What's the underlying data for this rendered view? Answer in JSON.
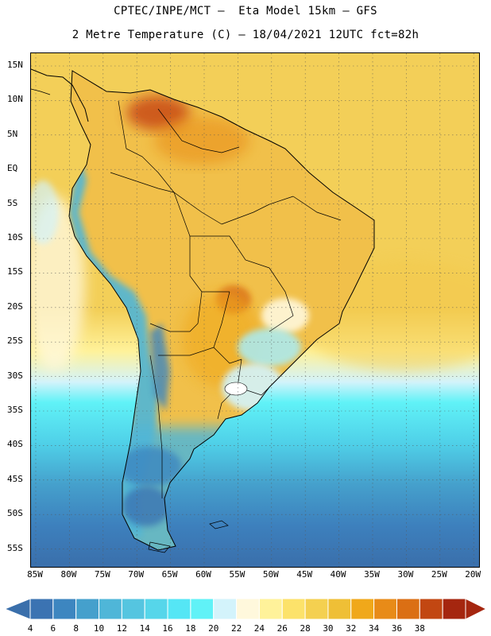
{
  "title": {
    "line1": "CPTEC/INPE/MCT –  Eta Model 15km – GFS",
    "line2": "2 Metre Temperature (C) – 18/04/2021 12UTC fct=82h"
  },
  "axes": {
    "lat_labels": [
      "15N",
      "10N",
      "5N",
      "EQ",
      "5S",
      "10S",
      "15S",
      "20S",
      "25S",
      "30S",
      "35S",
      "40S",
      "45S",
      "50S",
      "55S"
    ],
    "lon_labels": [
      "85W",
      "80W",
      "75W",
      "70W",
      "65W",
      "60W",
      "55W",
      "50W",
      "45W",
      "40W",
      "35W",
      "30W",
      "25W",
      "20W"
    ]
  },
  "legend": {
    "values": [
      4,
      6,
      8,
      10,
      12,
      14,
      16,
      18,
      20,
      22,
      24,
      26,
      28,
      30,
      32,
      34,
      36,
      38
    ],
    "colors": [
      "#3b73b2",
      "#3d86c0",
      "#45a0cc",
      "#4fb6d8",
      "#55c5e0",
      "#56d6ea",
      "#55e6f5",
      "#60f2f7",
      "#d3f3fb",
      "#fff8dc",
      "#fff29a",
      "#fce26a",
      "#f4d050",
      "#efbf36",
      "#f0a81a",
      "#e88b18",
      "#db6f14",
      "#c24712",
      "#a5260f"
    ],
    "below_color": "#3a6fab",
    "above_color": "#a5260f"
  },
  "map": {
    "ocean_color": "#f3cc52",
    "land_color": "#f3c14a",
    "border_color": "#000000"
  }
}
